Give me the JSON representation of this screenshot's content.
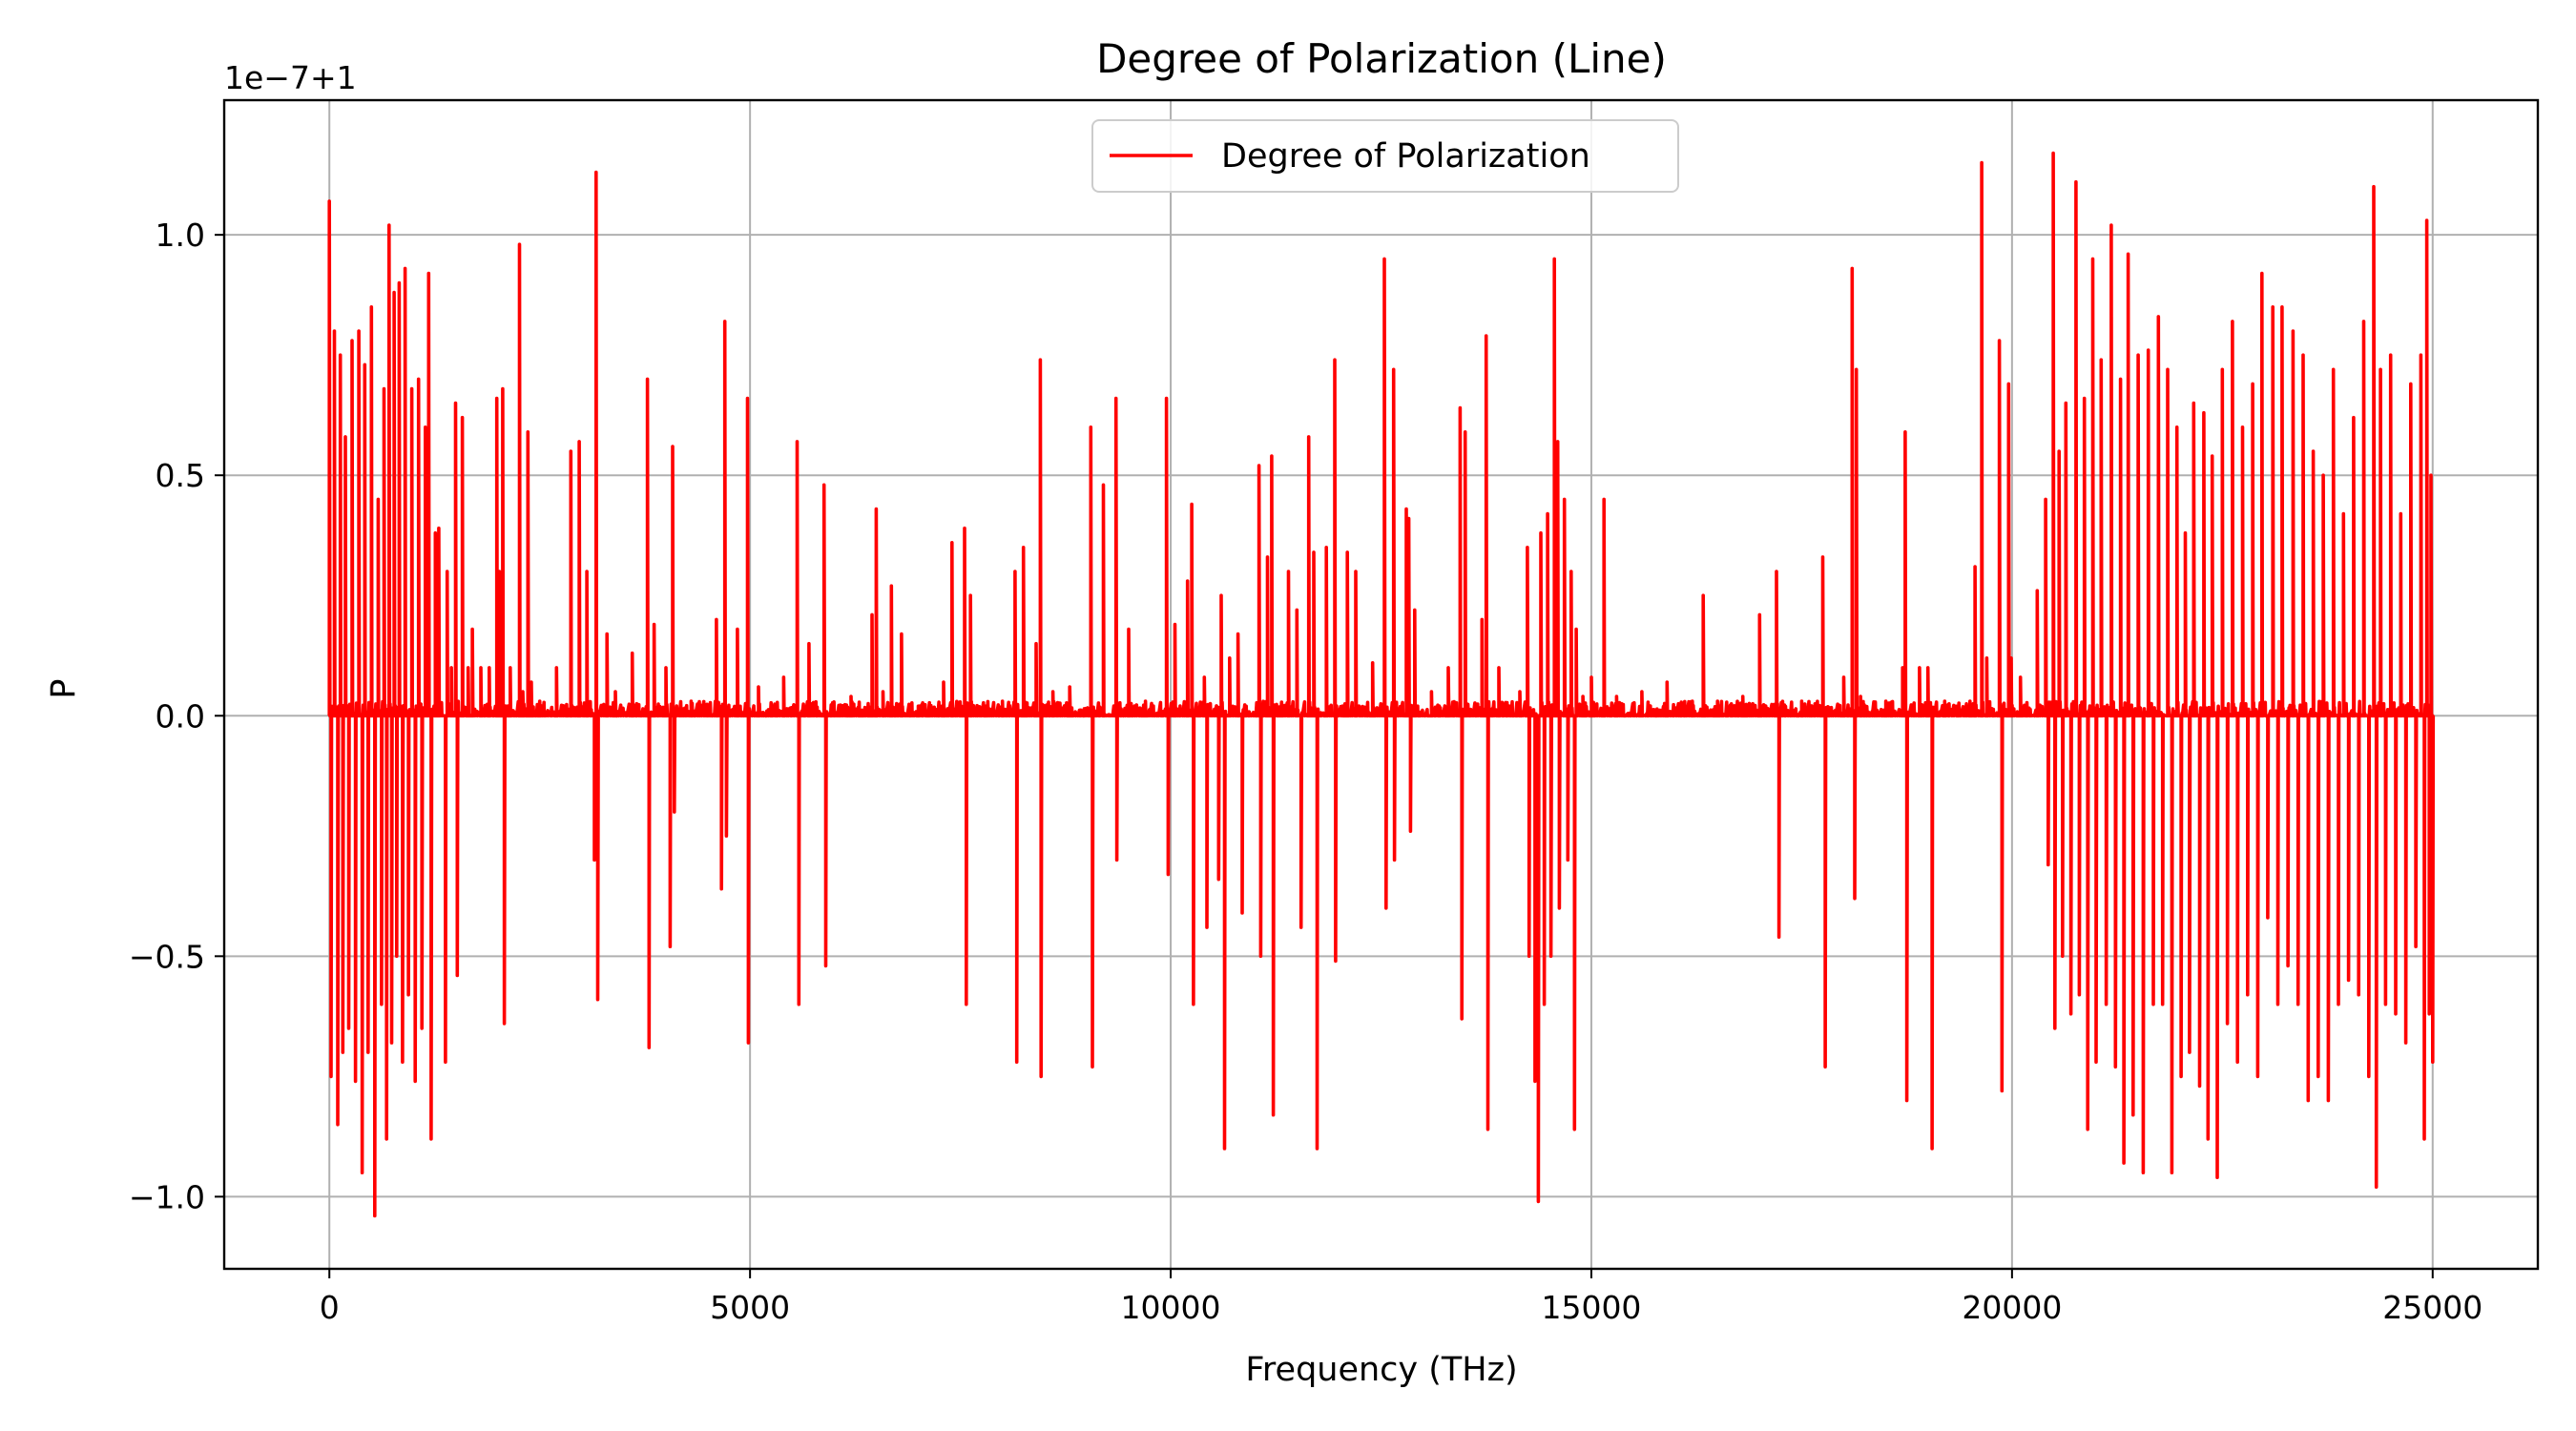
{
  "chart_data": {
    "type": "line",
    "title": "Degree of Polarization (Line)",
    "xlabel": "Frequency (THz)",
    "ylabel": "P",
    "offset_text": "1e−7+1",
    "xlim": [
      -1250,
      26250
    ],
    "ylim": [
      -1.15,
      1.28
    ],
    "x_ticks": [
      0,
      5000,
      10000,
      15000,
      20000,
      25000
    ],
    "x_tick_labels": [
      "0",
      "5000",
      "10000",
      "15000",
      "20000",
      "25000"
    ],
    "y_ticks": [
      -1.0,
      -0.5,
      0.0,
      0.5,
      1.0
    ],
    "y_tick_labels": [
      "−1.0",
      "−0.5",
      "0.0",
      "0.5",
      "1.0"
    ],
    "grid": true,
    "legend_position": "upper center",
    "series": [
      {
        "name": "Degree of Polarization",
        "color": "#ff0000",
        "x_range": [
          0,
          25000
        ],
        "note_values": "offset from 1 in units of 1e-7 (as shown by offset text)",
        "peaks": [
          [
            0,
            1.07
          ],
          [
            20,
            -0.75
          ],
          [
            60,
            0.8
          ],
          [
            100,
            -0.85
          ],
          [
            130,
            0.75
          ],
          [
            160,
            -0.7
          ],
          [
            190,
            0.58
          ],
          [
            230,
            -0.65
          ],
          [
            270,
            0.78
          ],
          [
            310,
            -0.76
          ],
          [
            350,
            0.8
          ],
          [
            390,
            -0.95
          ],
          [
            420,
            0.73
          ],
          [
            460,
            -0.7
          ],
          [
            500,
            0.85
          ],
          [
            540,
            -1.04
          ],
          [
            580,
            0.45
          ],
          [
            620,
            -0.6
          ],
          [
            650,
            0.68
          ],
          [
            680,
            -0.88
          ],
          [
            710,
            1.02
          ],
          [
            740,
            -0.68
          ],
          [
            770,
            0.88
          ],
          [
            800,
            -0.5
          ],
          [
            830,
            0.9
          ],
          [
            870,
            -0.72
          ],
          [
            900,
            0.93
          ],
          [
            940,
            -0.58
          ],
          [
            980,
            0.68
          ],
          [
            1020,
            -0.76
          ],
          [
            1060,
            0.7
          ],
          [
            1100,
            -0.65
          ],
          [
            1140,
            0.6
          ],
          [
            1180,
            0.92
          ],
          [
            1210,
            -0.88
          ],
          [
            1260,
            0.38
          ],
          [
            1300,
            0.39
          ],
          [
            1380,
            -0.72
          ],
          [
            1400,
            0.3
          ],
          [
            1450,
            0.1
          ],
          [
            1500,
            0.65
          ],
          [
            1520,
            -0.54
          ],
          [
            1580,
            0.62
          ],
          [
            1650,
            0.1
          ],
          [
            1700,
            0.18
          ],
          [
            1800,
            0.1
          ],
          [
            1900,
            0.1
          ],
          [
            1990,
            0.66
          ],
          [
            2020,
            0.3
          ],
          [
            2060,
            0.68
          ],
          [
            2080,
            -0.64
          ],
          [
            2150,
            0.1
          ],
          [
            2260,
            0.98
          ],
          [
            2300,
            0.05
          ],
          [
            2360,
            0.59
          ],
          [
            2400,
            0.07
          ],
          [
            2500,
            0.03
          ],
          [
            2700,
            0.1
          ],
          [
            2870,
            0.55
          ],
          [
            2970,
            0.57
          ],
          [
            3060,
            0.3
          ],
          [
            3150,
            -0.3
          ],
          [
            3170,
            1.13
          ],
          [
            3190,
            -0.59
          ],
          [
            3300,
            0.17
          ],
          [
            3400,
            0.05
          ],
          [
            3600,
            0.13
          ],
          [
            3780,
            0.7
          ],
          [
            3800,
            -0.69
          ],
          [
            3860,
            0.19
          ],
          [
            4000,
            0.1
          ],
          [
            4050,
            -0.48
          ],
          [
            4080,
            0.56
          ],
          [
            4100,
            -0.2
          ],
          [
            4300,
            0.03
          ],
          [
            4600,
            0.2
          ],
          [
            4660,
            -0.36
          ],
          [
            4700,
            0.82
          ],
          [
            4720,
            -0.25
          ],
          [
            4850,
            0.18
          ],
          [
            4970,
            0.66
          ],
          [
            4980,
            -0.68
          ],
          [
            5100,
            0.06
          ],
          [
            5400,
            0.08
          ],
          [
            5560,
            0.57
          ],
          [
            5580,
            -0.6
          ],
          [
            5700,
            0.15
          ],
          [
            5880,
            0.48
          ],
          [
            5900,
            -0.52
          ],
          [
            6200,
            0.04
          ],
          [
            6450,
            0.21
          ],
          [
            6500,
            0.43
          ],
          [
            6580,
            0.05
          ],
          [
            6680,
            0.27
          ],
          [
            6800,
            0.17
          ],
          [
            7000,
            0.02
          ],
          [
            7300,
            0.07
          ],
          [
            7400,
            0.36
          ],
          [
            7550,
            0.39
          ],
          [
            7570,
            -0.6
          ],
          [
            7620,
            0.25
          ],
          [
            7800,
            0.02
          ],
          [
            8000,
            0.03
          ],
          [
            8150,
            0.3
          ],
          [
            8170,
            -0.72
          ],
          [
            8250,
            0.35
          ],
          [
            8400,
            0.15
          ],
          [
            8450,
            0.74
          ],
          [
            8460,
            -0.75
          ],
          [
            8600,
            0.05
          ],
          [
            8800,
            0.06
          ],
          [
            9050,
            0.6
          ],
          [
            9070,
            -0.73
          ],
          [
            9200,
            0.48
          ],
          [
            9350,
            0.66
          ],
          [
            9360,
            -0.3
          ],
          [
            9500,
            0.18
          ],
          [
            9700,
            0.03
          ],
          [
            9950,
            0.66
          ],
          [
            9970,
            -0.33
          ],
          [
            10050,
            0.19
          ],
          [
            10200,
            0.28
          ],
          [
            10250,
            0.44
          ],
          [
            10270,
            -0.6
          ],
          [
            10400,
            0.08
          ],
          [
            10430,
            -0.44
          ],
          [
            10570,
            -0.34
          ],
          [
            10600,
            0.25
          ],
          [
            10640,
            -0.9
          ],
          [
            10700,
            0.12
          ],
          [
            10800,
            0.17
          ],
          [
            10850,
            -0.41
          ],
          [
            11050,
            0.52
          ],
          [
            11070,
            -0.5
          ],
          [
            11150,
            0.33
          ],
          [
            11200,
            0.54
          ],
          [
            11220,
            -0.83
          ],
          [
            11400,
            0.3
          ],
          [
            11500,
            0.22
          ],
          [
            11550,
            -0.44
          ],
          [
            11640,
            0.58
          ],
          [
            11700,
            0.34
          ],
          [
            11740,
            -0.9
          ],
          [
            11850,
            0.35
          ],
          [
            11950,
            0.74
          ],
          [
            11960,
            -0.51
          ],
          [
            12100,
            0.34
          ],
          [
            12200,
            0.3
          ],
          [
            12400,
            0.11
          ],
          [
            12540,
            0.95
          ],
          [
            12560,
            -0.4
          ],
          [
            12650,
            0.72
          ],
          [
            12660,
            -0.3
          ],
          [
            12800,
            0.43
          ],
          [
            12830,
            0.41
          ],
          [
            12850,
            -0.24
          ],
          [
            12900,
            0.22
          ],
          [
            13100,
            0.05
          ],
          [
            13300,
            0.1
          ],
          [
            13440,
            0.64
          ],
          [
            13460,
            -0.63
          ],
          [
            13500,
            0.59
          ],
          [
            13700,
            0.2
          ],
          [
            13750,
            0.79
          ],
          [
            13770,
            -0.86
          ],
          [
            13900,
            0.1
          ],
          [
            14150,
            0.05
          ],
          [
            14240,
            0.35
          ],
          [
            14260,
            -0.5
          ],
          [
            14330,
            -0.76
          ],
          [
            14370,
            -1.01
          ],
          [
            14400,
            0.38
          ],
          [
            14440,
            -0.6
          ],
          [
            14480,
            0.42
          ],
          [
            14520,
            -0.5
          ],
          [
            14560,
            0.95
          ],
          [
            14600,
            0.57
          ],
          [
            14620,
            -0.4
          ],
          [
            14680,
            0.45
          ],
          [
            14720,
            -0.3
          ],
          [
            14760,
            0.3
          ],
          [
            14800,
            -0.86
          ],
          [
            14820,
            0.18
          ],
          [
            14900,
            0.04
          ],
          [
            15000,
            0.08
          ],
          [
            15150,
            0.45
          ],
          [
            15300,
            0.04
          ],
          [
            15600,
            0.05
          ],
          [
            15900,
            0.07
          ],
          [
            16200,
            0.03
          ],
          [
            16330,
            0.25
          ],
          [
            16500,
            0.03
          ],
          [
            16800,
            0.04
          ],
          [
            17000,
            0.21
          ],
          [
            17200,
            0.3
          ],
          [
            17230,
            -0.46
          ],
          [
            17500,
            0.03
          ],
          [
            17750,
            0.33
          ],
          [
            17780,
            -0.73
          ],
          [
            18000,
            0.08
          ],
          [
            18100,
            0.93
          ],
          [
            18130,
            -0.38
          ],
          [
            18150,
            0.72
          ],
          [
            18200,
            0.04
          ],
          [
            18500,
            0.03
          ],
          [
            18700,
            0.1
          ],
          [
            18730,
            0.59
          ],
          [
            18750,
            -0.8
          ],
          [
            18900,
            0.1
          ],
          [
            19000,
            0.1
          ],
          [
            19050,
            -0.9
          ],
          [
            19200,
            0.03
          ],
          [
            19500,
            0.03
          ],
          [
            19560,
            0.31
          ],
          [
            19640,
            1.15
          ],
          [
            19700,
            0.12
          ],
          [
            19850,
            0.78
          ],
          [
            19880,
            -0.78
          ],
          [
            19960,
            0.69
          ],
          [
            19990,
            0.12
          ],
          [
            20100,
            0.08
          ],
          [
            20300,
            0.26
          ],
          [
            20400,
            0.45
          ],
          [
            20430,
            -0.31
          ],
          [
            20490,
            1.17
          ],
          [
            20510,
            -0.65
          ],
          [
            20560,
            0.55
          ],
          [
            20600,
            -0.5
          ],
          [
            20640,
            0.65
          ],
          [
            20700,
            -0.62
          ],
          [
            20760,
            1.11
          ],
          [
            20800,
            -0.58
          ],
          [
            20860,
            0.66
          ],
          [
            20900,
            -0.86
          ],
          [
            20960,
            0.95
          ],
          [
            21000,
            -0.72
          ],
          [
            21060,
            0.74
          ],
          [
            21120,
            -0.6
          ],
          [
            21180,
            1.02
          ],
          [
            21230,
            -0.73
          ],
          [
            21290,
            0.7
          ],
          [
            21330,
            -0.93
          ],
          [
            21380,
            0.96
          ],
          [
            21440,
            -0.83
          ],
          [
            21500,
            0.75
          ],
          [
            21560,
            -0.95
          ],
          [
            21620,
            0.76
          ],
          [
            21680,
            -0.6
          ],
          [
            21740,
            0.83
          ],
          [
            21790,
            -0.6
          ],
          [
            21850,
            0.72
          ],
          [
            21900,
            -0.95
          ],
          [
            21960,
            0.6
          ],
          [
            22010,
            -0.75
          ],
          [
            22060,
            0.38
          ],
          [
            22110,
            -0.7
          ],
          [
            22160,
            0.65
          ],
          [
            22230,
            -0.77
          ],
          [
            22280,
            0.63
          ],
          [
            22330,
            -0.88
          ],
          [
            22380,
            0.54
          ],
          [
            22440,
            -0.96
          ],
          [
            22500,
            0.72
          ],
          [
            22560,
            -0.64
          ],
          [
            22620,
            0.82
          ],
          [
            22680,
            -0.72
          ],
          [
            22740,
            0.6
          ],
          [
            22800,
            -0.58
          ],
          [
            22860,
            0.69
          ],
          [
            22920,
            -0.75
          ],
          [
            22970,
            0.92
          ],
          [
            23040,
            -0.42
          ],
          [
            23100,
            0.85
          ],
          [
            23160,
            -0.6
          ],
          [
            23210,
            0.85
          ],
          [
            23280,
            -0.52
          ],
          [
            23340,
            0.8
          ],
          [
            23400,
            -0.6
          ],
          [
            23460,
            0.75
          ],
          [
            23520,
            -0.8
          ],
          [
            23580,
            0.55
          ],
          [
            23640,
            -0.75
          ],
          [
            23700,
            0.5
          ],
          [
            23760,
            -0.8
          ],
          [
            23820,
            0.72
          ],
          [
            23880,
            -0.6
          ],
          [
            23940,
            0.42
          ],
          [
            24000,
            -0.55
          ],
          [
            24060,
            0.62
          ],
          [
            24120,
            -0.58
          ],
          [
            24180,
            0.82
          ],
          [
            24240,
            -0.75
          ],
          [
            24300,
            1.1
          ],
          [
            24330,
            -0.98
          ],
          [
            24380,
            0.72
          ],
          [
            24440,
            -0.6
          ],
          [
            24500,
            0.75
          ],
          [
            24560,
            -0.62
          ],
          [
            24620,
            0.42
          ],
          [
            24680,
            -0.68
          ],
          [
            24740,
            0.69
          ],
          [
            24800,
            -0.48
          ],
          [
            24860,
            0.75
          ],
          [
            24900,
            -0.88
          ],
          [
            24930,
            1.03
          ],
          [
            24960,
            -0.62
          ],
          [
            24980,
            0.5
          ],
          [
            25000,
            -0.72
          ]
        ]
      }
    ]
  }
}
